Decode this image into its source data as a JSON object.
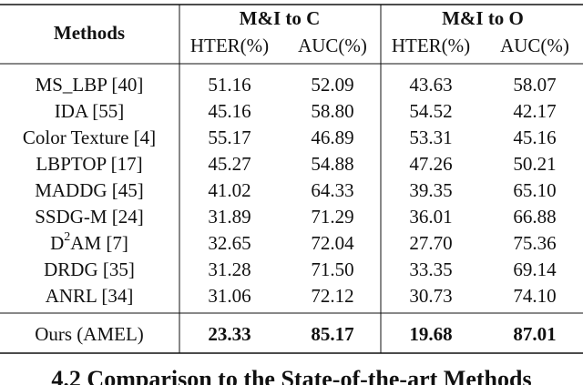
{
  "table": {
    "header": {
      "methods": "Methods",
      "groups": [
        "M&I to C",
        "M&I to O"
      ],
      "metrics": [
        "HTER(%)",
        "AUC(%)",
        "HTER(%)",
        "AUC(%)"
      ]
    },
    "rows": [
      {
        "method": "MS_LBP [40]",
        "values": [
          "51.16",
          "52.09",
          "43.63",
          "58.07"
        ]
      },
      {
        "method": "IDA [55]",
        "values": [
          "45.16",
          "58.80",
          "54.52",
          "42.17"
        ]
      },
      {
        "method": "Color Texture [4]",
        "values": [
          "55.17",
          "46.89",
          "53.31",
          "45.16"
        ]
      },
      {
        "method": "LBPTOP [17]",
        "values": [
          "45.27",
          "54.88",
          "47.26",
          "50.21"
        ]
      },
      {
        "method": "MADDG [45]",
        "values": [
          "41.02",
          "64.33",
          "39.35",
          "65.10"
        ]
      },
      {
        "method": "SSDG-M [24]",
        "values": [
          "31.89",
          "71.29",
          "36.01",
          "66.88"
        ]
      },
      {
        "method": {
          "base": "D",
          "sup": "2",
          "rest": "AM [7]"
        },
        "values": [
          "32.65",
          "72.04",
          "27.70",
          "75.36"
        ]
      },
      {
        "method": "DRDG [35]",
        "values": [
          "31.28",
          "71.50",
          "33.35",
          "69.14"
        ]
      },
      {
        "method": "ANRL [34]",
        "values": [
          "31.06",
          "72.12",
          "30.73",
          "74.10"
        ]
      }
    ],
    "ours": {
      "method": "Ours (AMEL)",
      "values": [
        "23.33",
        "85.17",
        "19.68",
        "87.01"
      ]
    }
  },
  "next_heading": "4.2 Comparison to the State-of-the-art Methods"
}
